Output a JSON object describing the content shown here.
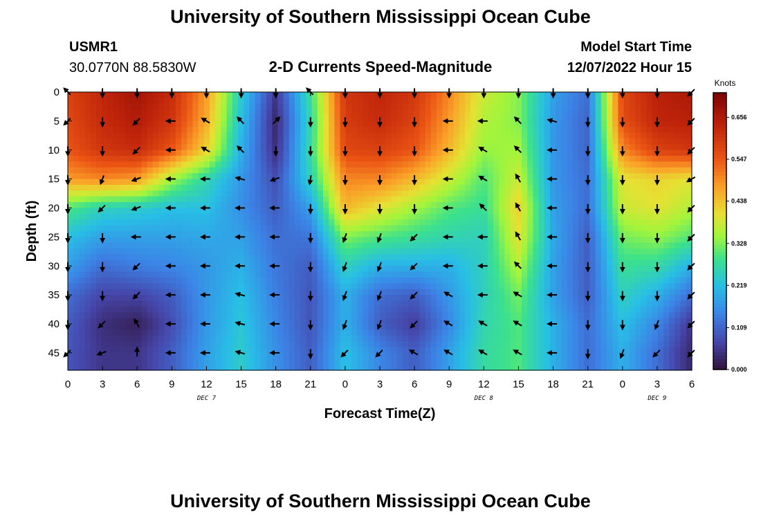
{
  "header": {
    "title": "University of Southern Mississippi Ocean Cube",
    "station_id": "USMR1",
    "station_coords": "30.0770N  88.5830W",
    "plot_title": "2-D Currents Speed-Magnitude",
    "model_label": "Model Start Time",
    "model_time": "12/07/2022 Hour 15"
  },
  "footer": {
    "repeat_title": "University of Southern Mississippi Ocean Cube"
  },
  "chart_data": {
    "type": "heatmap",
    "title": "2-D Currents Speed-Magnitude",
    "xlabel": "Forecast Time(Z)",
    "ylabel": "Depth (ft)",
    "colorbar_label": "Knots",
    "colorbar_ticks": [
      "0.000",
      "0.109",
      "0.219",
      "0.328",
      "0.438",
      "0.547",
      "0.656"
    ],
    "colorbar_range": [
      0,
      0.72
    ],
    "x_ticks": [
      "0",
      "3",
      "6",
      "9",
      "12",
      "15",
      "18",
      "21",
      "0",
      "3",
      "6",
      "9",
      "12",
      "15",
      "18",
      "21",
      "0",
      "3",
      "6"
    ],
    "x_range_hours": [
      0,
      54
    ],
    "day_labels": [
      {
        "label": "DEC 7",
        "hour": 12
      },
      {
        "label": "DEC 8",
        "hour": 36
      },
      {
        "label": "DEC 9",
        "hour": 51
      }
    ],
    "y_ticks": [
      0,
      5,
      10,
      15,
      20,
      25,
      30,
      35,
      40,
      45
    ],
    "y_range_ft": [
      0,
      48
    ],
    "speed_grid": {
      "hours": [
        0,
        3,
        6,
        9,
        12,
        15,
        18,
        21,
        24,
        27,
        30,
        33,
        36,
        39,
        42,
        45,
        48,
        51,
        54
      ],
      "depths_ft": [
        0,
        5,
        10,
        15,
        20,
        25,
        30,
        35,
        40,
        45
      ],
      "values_knots": [
        [
          0.58,
          0.63,
          0.67,
          0.62,
          0.48,
          0.24,
          0.05,
          0.28,
          0.6,
          0.63,
          0.6,
          0.5,
          0.38,
          0.33,
          0.18,
          0.12,
          0.57,
          0.64,
          0.66
        ],
        [
          0.57,
          0.62,
          0.65,
          0.6,
          0.46,
          0.22,
          0.03,
          0.26,
          0.59,
          0.62,
          0.58,
          0.48,
          0.36,
          0.33,
          0.17,
          0.11,
          0.56,
          0.63,
          0.64
        ],
        [
          0.55,
          0.6,
          0.62,
          0.55,
          0.42,
          0.2,
          0.04,
          0.27,
          0.57,
          0.58,
          0.55,
          0.45,
          0.34,
          0.35,
          0.17,
          0.11,
          0.5,
          0.58,
          0.6
        ],
        [
          0.48,
          0.5,
          0.48,
          0.35,
          0.26,
          0.17,
          0.08,
          0.25,
          0.5,
          0.5,
          0.45,
          0.38,
          0.3,
          0.38,
          0.17,
          0.12,
          0.4,
          0.42,
          0.4
        ],
        [
          0.3,
          0.25,
          0.24,
          0.22,
          0.22,
          0.16,
          0.1,
          0.18,
          0.45,
          0.4,
          0.35,
          0.3,
          0.28,
          0.42,
          0.18,
          0.12,
          0.38,
          0.4,
          0.36
        ],
        [
          0.22,
          0.18,
          0.18,
          0.18,
          0.19,
          0.18,
          0.12,
          0.13,
          0.33,
          0.3,
          0.28,
          0.26,
          0.25,
          0.4,
          0.19,
          0.1,
          0.32,
          0.34,
          0.3
        ],
        [
          0.18,
          0.12,
          0.14,
          0.15,
          0.17,
          0.2,
          0.13,
          0.1,
          0.25,
          0.2,
          0.2,
          0.2,
          0.25,
          0.36,
          0.18,
          0.1,
          0.28,
          0.27,
          0.2
        ],
        [
          0.12,
          0.07,
          0.07,
          0.1,
          0.17,
          0.22,
          0.14,
          0.09,
          0.2,
          0.12,
          0.1,
          0.17,
          0.25,
          0.32,
          0.18,
          0.1,
          0.25,
          0.2,
          0.12
        ],
        [
          0.1,
          0.04,
          0.02,
          0.08,
          0.17,
          0.23,
          0.15,
          0.09,
          0.2,
          0.1,
          0.06,
          0.15,
          0.26,
          0.3,
          0.2,
          0.12,
          0.22,
          0.15,
          0.05
        ],
        [
          0.09,
          0.05,
          0.05,
          0.1,
          0.18,
          0.24,
          0.16,
          0.1,
          0.22,
          0.15,
          0.1,
          0.18,
          0.27,
          0.3,
          0.2,
          0.12,
          0.2,
          0.12,
          0.03
        ]
      ],
      "arrow_direction_deg": [
        [
          315,
          180,
          180,
          180,
          180,
          180,
          180,
          315,
          180,
          180,
          180,
          180,
          180,
          180,
          180,
          180,
          180,
          180,
          225
        ],
        [
          225,
          180,
          225,
          270,
          300,
          315,
          45,
          180,
          180,
          180,
          180,
          270,
          270,
          315,
          285,
          180,
          180,
          180,
          225
        ],
        [
          180,
          180,
          225,
          270,
          300,
          315,
          180,
          180,
          180,
          180,
          180,
          270,
          300,
          315,
          270,
          180,
          180,
          180,
          225
        ],
        [
          180,
          200,
          250,
          270,
          270,
          285,
          250,
          190,
          180,
          180,
          180,
          270,
          300,
          330,
          270,
          180,
          180,
          180,
          240
        ],
        [
          180,
          225,
          250,
          270,
          270,
          270,
          270,
          180,
          180,
          180,
          180,
          270,
          315,
          330,
          270,
          180,
          180,
          180,
          225
        ],
        [
          180,
          180,
          270,
          270,
          270,
          270,
          270,
          180,
          200,
          200,
          225,
          270,
          270,
          330,
          270,
          180,
          180,
          180,
          225
        ],
        [
          180,
          180,
          225,
          270,
          270,
          270,
          270,
          180,
          200,
          200,
          225,
          270,
          270,
          315,
          270,
          180,
          180,
          180,
          225
        ],
        [
          180,
          180,
          225,
          270,
          270,
          285,
          270,
          180,
          200,
          200,
          225,
          300,
          270,
          300,
          270,
          180,
          180,
          180,
          225
        ],
        [
          180,
          225,
          330,
          270,
          270,
          285,
          270,
          180,
          200,
          200,
          225,
          300,
          300,
          300,
          270,
          180,
          180,
          200,
          225
        ],
        [
          225,
          250,
          0,
          270,
          270,
          285,
          270,
          180,
          225,
          225,
          300,
          300,
          300,
          300,
          270,
          180,
          200,
          225,
          225
        ]
      ]
    }
  }
}
